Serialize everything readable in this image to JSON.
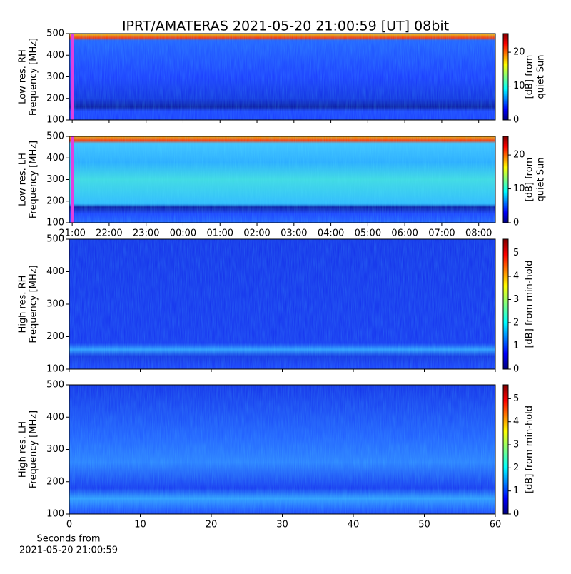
{
  "title": "IPRT/AMATERAS 2021-05-20 21:00:59 [UT]   08bit",
  "chart_data": [
    {
      "type": "heatmap",
      "ylabel": [
        "Low res. RH",
        "Frequency [MHz]"
      ],
      "ylim": [
        100,
        500
      ],
      "yticks": [
        100,
        200,
        300,
        400,
        500
      ],
      "xlim": [
        -0.08,
        11.45
      ],
      "xticks": [
        {
          "value": 0,
          "label": "21:00"
        },
        {
          "value": 1,
          "label": "22:00"
        },
        {
          "value": 2,
          "label": "23:00"
        },
        {
          "value": 3,
          "label": "00:00"
        },
        {
          "value": 4,
          "label": "01:00"
        },
        {
          "value": 5,
          "label": "02:00"
        },
        {
          "value": 6,
          "label": "03:00"
        },
        {
          "value": 7,
          "label": "04:00"
        },
        {
          "value": 8,
          "label": "05:00"
        },
        {
          "value": 9,
          "label": "06:00"
        },
        {
          "value": 10,
          "label": "07:00"
        },
        {
          "value": 11,
          "label": "08:00"
        }
      ],
      "xticklabels": false,
      "colorbar_label": [
        "[dB] from",
        "quiet Sun"
      ],
      "clim": [
        0,
        25.5
      ],
      "cticks": [
        0,
        10,
        20
      ]
    },
    {
      "type": "heatmap",
      "ylabel": [
        "Low res. LH",
        "Frequency [MHz]"
      ],
      "ylim": [
        100,
        500
      ],
      "yticks": [
        100,
        200,
        300,
        400,
        500
      ],
      "xlim": [
        -0.08,
        11.45
      ],
      "xticks": [
        {
          "value": 0,
          "label": "21:00"
        },
        {
          "value": 1,
          "label": "22:00"
        },
        {
          "value": 2,
          "label": "23:00"
        },
        {
          "value": 3,
          "label": "00:00"
        },
        {
          "value": 4,
          "label": "01:00"
        },
        {
          "value": 5,
          "label": "02:00"
        },
        {
          "value": 6,
          "label": "03:00"
        },
        {
          "value": 7,
          "label": "04:00"
        },
        {
          "value": 8,
          "label": "05:00"
        },
        {
          "value": 9,
          "label": "06:00"
        },
        {
          "value": 10,
          "label": "07:00"
        },
        {
          "value": 11,
          "label": "08:00"
        }
      ],
      "xticklabels": true,
      "colorbar_label": [
        "[dB] from",
        "quiet Sun"
      ],
      "clim": [
        0,
        25.5
      ],
      "cticks": [
        0,
        10,
        20
      ]
    },
    {
      "type": "heatmap",
      "ylabel": [
        "High res. RH",
        "Frequency [MHz]"
      ],
      "ylim": [
        100,
        500
      ],
      "yticks": [
        100,
        200,
        300,
        400,
        500
      ],
      "xlim": [
        0,
        60
      ],
      "xticks": [
        0,
        10,
        20,
        30,
        40,
        50,
        60
      ],
      "xticklabels": false,
      "colorbar_label": [
        "[dB] from min-hold"
      ],
      "clim": [
        0,
        5.6
      ],
      "cticks": [
        0,
        1,
        2,
        3,
        4,
        5
      ]
    },
    {
      "type": "heatmap",
      "ylabel": [
        "High res. LH",
        "Frequency [MHz]"
      ],
      "ylim": [
        100,
        500
      ],
      "yticks": [
        100,
        200,
        300,
        400,
        500
      ],
      "xlim": [
        0,
        60
      ],
      "xticks": [
        0,
        10,
        20,
        30,
        40,
        50,
        60
      ],
      "xticklabels": true,
      "xlabel": [
        "Seconds from",
        "2021-05-20 21:00:59"
      ],
      "colorbar_label": [
        "[dB] from min-hold"
      ],
      "clim": [
        0,
        5.6
      ],
      "cticks": [
        0,
        1,
        2,
        3,
        4,
        5
      ]
    }
  ]
}
